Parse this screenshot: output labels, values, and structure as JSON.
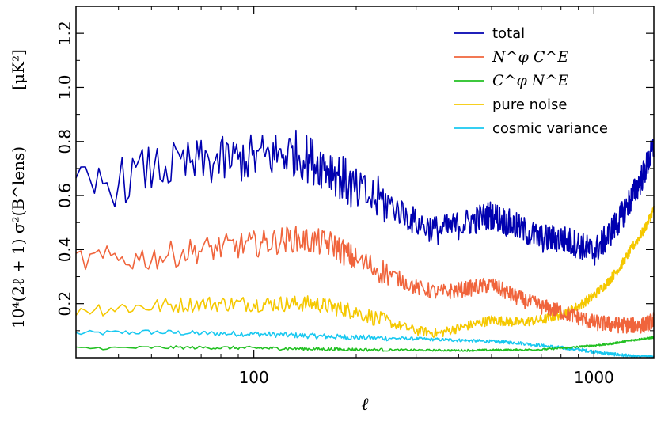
{
  "chart_data": {
    "type": "line",
    "xscale": "log",
    "xlim": [
      30,
      1500
    ],
    "ylim": [
      0,
      1.3
    ],
    "xticks": [
      {
        "value": 100,
        "label": "100"
      },
      {
        "value": 1000,
        "label": "1000"
      }
    ],
    "yticks": [
      {
        "value": 0.2,
        "label": "0.2"
      },
      {
        "value": 0.4,
        "label": "0.4"
      },
      {
        "value": 0.6,
        "label": "0.6"
      },
      {
        "value": 0.8,
        "label": "0.8"
      },
      {
        "value": 1.0,
        "label": "1.0"
      },
      {
        "value": 1.2,
        "label": "1.2"
      }
    ],
    "xlabel": "ℓ",
    "ylabel": "10⁴(2ℓ + 1) σ²(B^lens)",
    "ylabel_unit": "[μK²]",
    "legend_position": "top-right",
    "grid": false,
    "series": [
      {
        "name": "total",
        "color": "#0000b0",
        "points": [
          [
            30,
            0.62
          ],
          [
            40,
            0.65
          ],
          [
            50,
            0.7
          ],
          [
            70,
            0.72
          ],
          [
            100,
            0.74
          ],
          [
            130,
            0.76
          ],
          [
            170,
            0.7
          ],
          [
            200,
            0.61
          ],
          [
            250,
            0.57
          ],
          [
            300,
            0.5
          ],
          [
            350,
            0.47
          ],
          [
            400,
            0.49
          ],
          [
            500,
            0.53
          ],
          [
            600,
            0.48
          ],
          [
            700,
            0.44
          ],
          [
            800,
            0.44
          ],
          [
            900,
            0.42
          ],
          [
            1000,
            0.39
          ],
          [
            1100,
            0.45
          ],
          [
            1200,
            0.52
          ],
          [
            1300,
            0.6
          ],
          [
            1400,
            0.68
          ],
          [
            1500,
            0.78
          ]
        ],
        "noise": 0.09
      },
      {
        "name": "N^φ C^E",
        "color": "#f0643c",
        "points": [
          [
            30,
            0.36
          ],
          [
            50,
            0.37
          ],
          [
            70,
            0.4
          ],
          [
            100,
            0.42
          ],
          [
            130,
            0.44
          ],
          [
            170,
            0.42
          ],
          [
            200,
            0.36
          ],
          [
            250,
            0.31
          ],
          [
            300,
            0.26
          ],
          [
            350,
            0.24
          ],
          [
            400,
            0.25
          ],
          [
            500,
            0.27
          ],
          [
            600,
            0.22
          ],
          [
            700,
            0.19
          ],
          [
            800,
            0.17
          ],
          [
            900,
            0.15
          ],
          [
            1000,
            0.13
          ],
          [
            1200,
            0.12
          ],
          [
            1400,
            0.12
          ],
          [
            1500,
            0.14
          ]
        ],
        "noise": 0.05
      },
      {
        "name": "C^φ N^E",
        "color": "#22c022",
        "points": [
          [
            30,
            0.035
          ],
          [
            60,
            0.038
          ],
          [
            100,
            0.036
          ],
          [
            200,
            0.03
          ],
          [
            400,
            0.027
          ],
          [
            700,
            0.03
          ],
          [
            900,
            0.04
          ],
          [
            1100,
            0.05
          ],
          [
            1300,
            0.065
          ],
          [
            1500,
            0.075
          ]
        ],
        "noise": 0.006
      },
      {
        "name": "pure noise",
        "color": "#f5c800",
        "points": [
          [
            30,
            0.18
          ],
          [
            50,
            0.19
          ],
          [
            70,
            0.2
          ],
          [
            100,
            0.2
          ],
          [
            150,
            0.2
          ],
          [
            200,
            0.17
          ],
          [
            250,
            0.13
          ],
          [
            300,
            0.1
          ],
          [
            350,
            0.09
          ],
          [
            400,
            0.11
          ],
          [
            500,
            0.14
          ],
          [
            600,
            0.13
          ],
          [
            700,
            0.14
          ],
          [
            800,
            0.16
          ],
          [
            900,
            0.19
          ],
          [
            1000,
            0.23
          ],
          [
            1100,
            0.28
          ],
          [
            1200,
            0.34
          ],
          [
            1300,
            0.41
          ],
          [
            1400,
            0.47
          ],
          [
            1500,
            0.55
          ]
        ],
        "noise": 0.03
      },
      {
        "name": "cosmic variance",
        "color": "#18c8f0",
        "points": [
          [
            30,
            0.09
          ],
          [
            50,
            0.095
          ],
          [
            70,
            0.09
          ],
          [
            100,
            0.088
          ],
          [
            200,
            0.075
          ],
          [
            300,
            0.07
          ],
          [
            400,
            0.065
          ],
          [
            500,
            0.06
          ],
          [
            600,
            0.055
          ],
          [
            700,
            0.045
          ],
          [
            900,
            0.03
          ],
          [
            1100,
            0.015
          ],
          [
            1300,
            0.005
          ],
          [
            1500,
            0.0
          ]
        ],
        "noise": 0.01
      }
    ],
    "legend": [
      {
        "label": "total",
        "math": false
      },
      {
        "label": "N^φ C^E",
        "math": true
      },
      {
        "label": "C^φ N^E",
        "math": true
      },
      {
        "label": "pure noise",
        "math": false
      },
      {
        "label": "cosmic variance",
        "math": false
      }
    ]
  }
}
